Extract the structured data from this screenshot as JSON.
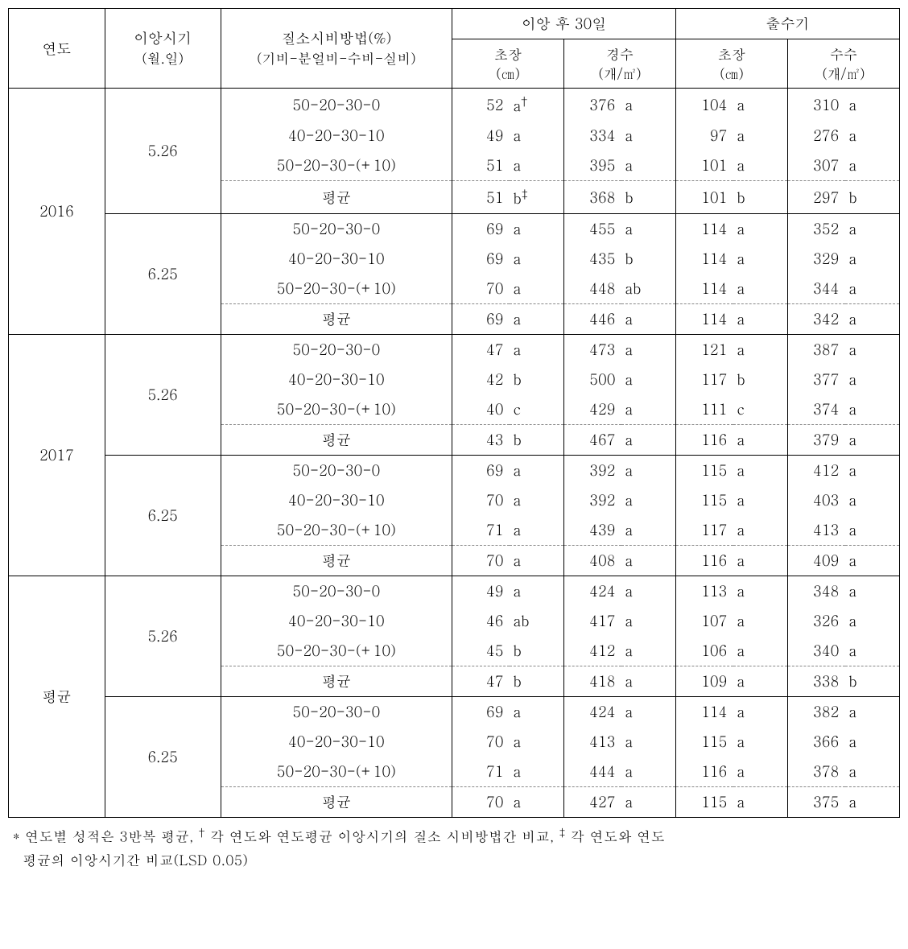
{
  "headers": {
    "year": "연도",
    "transplant": "이앙시기",
    "transplant_unit": "(월.일)",
    "nitrogen": "질소시비방법(%)",
    "nitrogen_sub": "(기비-분얼비-수비-실비)",
    "group30": "이앙 후 30일",
    "group_heading": "출수기",
    "chojang": "초장",
    "chojang_unit": "(㎝)",
    "gyeongsu": "경수",
    "gyeongsu_unit": "(개/㎡)",
    "chojang2": "초장",
    "chojang2_unit": "(㎝)",
    "susu": "수수",
    "susu_unit": "(개/㎡)"
  },
  "year_labels": [
    "2016",
    "2017",
    "평균"
  ],
  "date_labels": [
    "5.26",
    "6.25"
  ],
  "method_labels": [
    "50-20-30-0",
    "40-20-30-10",
    "50-20-30-(+10)",
    "평균"
  ],
  "rows": [
    {
      "c1": "52",
      "s1": "a",
      "sup1": "†",
      "c2": "376",
      "s2": "a",
      "c3": "104",
      "s3": "a",
      "c4": "310",
      "s4": "a"
    },
    {
      "c1": "49",
      "s1": "a",
      "c2": "334",
      "s2": "a",
      "c3": "97",
      "s3": "a",
      "c4": "276",
      "s4": "a"
    },
    {
      "c1": "51",
      "s1": "a",
      "c2": "395",
      "s2": "a",
      "c3": "101",
      "s3": "a",
      "c4": "307",
      "s4": "a"
    },
    {
      "c1": "51",
      "s1": "b",
      "sup1": "‡",
      "c2": "368",
      "s2": "b",
      "c3": "101",
      "s3": "b",
      "c4": "297",
      "s4": "b"
    },
    {
      "c1": "69",
      "s1": "a",
      "c2": "455",
      "s2": "a",
      "c3": "114",
      "s3": "a",
      "c4": "352",
      "s4": "a"
    },
    {
      "c1": "69",
      "s1": "a",
      "c2": "435",
      "s2": "b",
      "c3": "114",
      "s3": "a",
      "c4": "329",
      "s4": "a"
    },
    {
      "c1": "70",
      "s1": "a",
      "c2": "448",
      "s2": "ab",
      "c3": "114",
      "s3": "a",
      "c4": "344",
      "s4": "a"
    },
    {
      "c1": "69",
      "s1": "a",
      "c2": "446",
      "s2": "a",
      "c3": "114",
      "s3": "a",
      "c4": "342",
      "s4": "a"
    },
    {
      "c1": "47",
      "s1": "a",
      "c2": "473",
      "s2": "a",
      "c3": "121",
      "s3": "a",
      "c4": "387",
      "s4": "a"
    },
    {
      "c1": "42",
      "s1": "b",
      "c2": "500",
      "s2": "a",
      "c3": "117",
      "s3": "b",
      "c4": "377",
      "s4": "a"
    },
    {
      "c1": "40",
      "s1": "c",
      "c2": "429",
      "s2": "a",
      "c3": "111",
      "s3": "c",
      "c4": "374",
      "s4": "a"
    },
    {
      "c1": "43",
      "s1": "b",
      "c2": "467",
      "s2": "a",
      "c3": "116",
      "s3": "a",
      "c4": "379",
      "s4": "a"
    },
    {
      "c1": "69",
      "s1": "a",
      "c2": "392",
      "s2": "a",
      "c3": "115",
      "s3": "a",
      "c4": "412",
      "s4": "a"
    },
    {
      "c1": "70",
      "s1": "a",
      "c2": "392",
      "s2": "a",
      "c3": "115",
      "s3": "a",
      "c4": "403",
      "s4": "a"
    },
    {
      "c1": "71",
      "s1": "a",
      "c2": "439",
      "s2": "a",
      "c3": "117",
      "s3": "a",
      "c4": "413",
      "s4": "a"
    },
    {
      "c1": "70",
      "s1": "a",
      "c2": "408",
      "s2": "a",
      "c3": "116",
      "s3": "a",
      "c4": "409",
      "s4": "a"
    },
    {
      "c1": "49",
      "s1": "a",
      "c2": "424",
      "s2": "a",
      "c3": "113",
      "s3": "a",
      "c4": "348",
      "s4": "a"
    },
    {
      "c1": "46",
      "s1": "ab",
      "c2": "417",
      "s2": "a",
      "c3": "107",
      "s3": "a",
      "c4": "326",
      "s4": "a"
    },
    {
      "c1": "45",
      "s1": "b",
      "c2": "412",
      "s2": "a",
      "c3": "106",
      "s3": "a",
      "c4": "340",
      "s4": "a"
    },
    {
      "c1": "47",
      "s1": "b",
      "c2": "418",
      "s2": "a",
      "c3": "109",
      "s3": "a",
      "c4": "338",
      "s4": "b"
    },
    {
      "c1": "69",
      "s1": "a",
      "c2": "424",
      "s2": "a",
      "c3": "114",
      "s3": "a",
      "c4": "382",
      "s4": "a"
    },
    {
      "c1": "70",
      "s1": "a",
      "c2": "413",
      "s2": "a",
      "c3": "115",
      "s3": "a",
      "c4": "366",
      "s4": "a"
    },
    {
      "c1": "71",
      "s1": "a",
      "c2": "444",
      "s2": "a",
      "c3": "116",
      "s3": "a",
      "c4": "378",
      "s4": "a"
    },
    {
      "c1": "70",
      "s1": "a",
      "c2": "427",
      "s2": "a",
      "c3": "115",
      "s3": "a",
      "c4": "375",
      "s4": "a"
    }
  ],
  "footnote_star": "*",
  "footnote_text1": "연도별 성적은 3반복 평균, ",
  "footnote_dagger": "†",
  "footnote_text2": "각 연도와 연도평균 이앙시기의 질소 시비방법간 비교, ",
  "footnote_ddagger": "‡",
  "footnote_text3": "각 연도와 연도",
  "footnote_text4": "평균의 이앙시기간 비교(LSD 0.05)"
}
